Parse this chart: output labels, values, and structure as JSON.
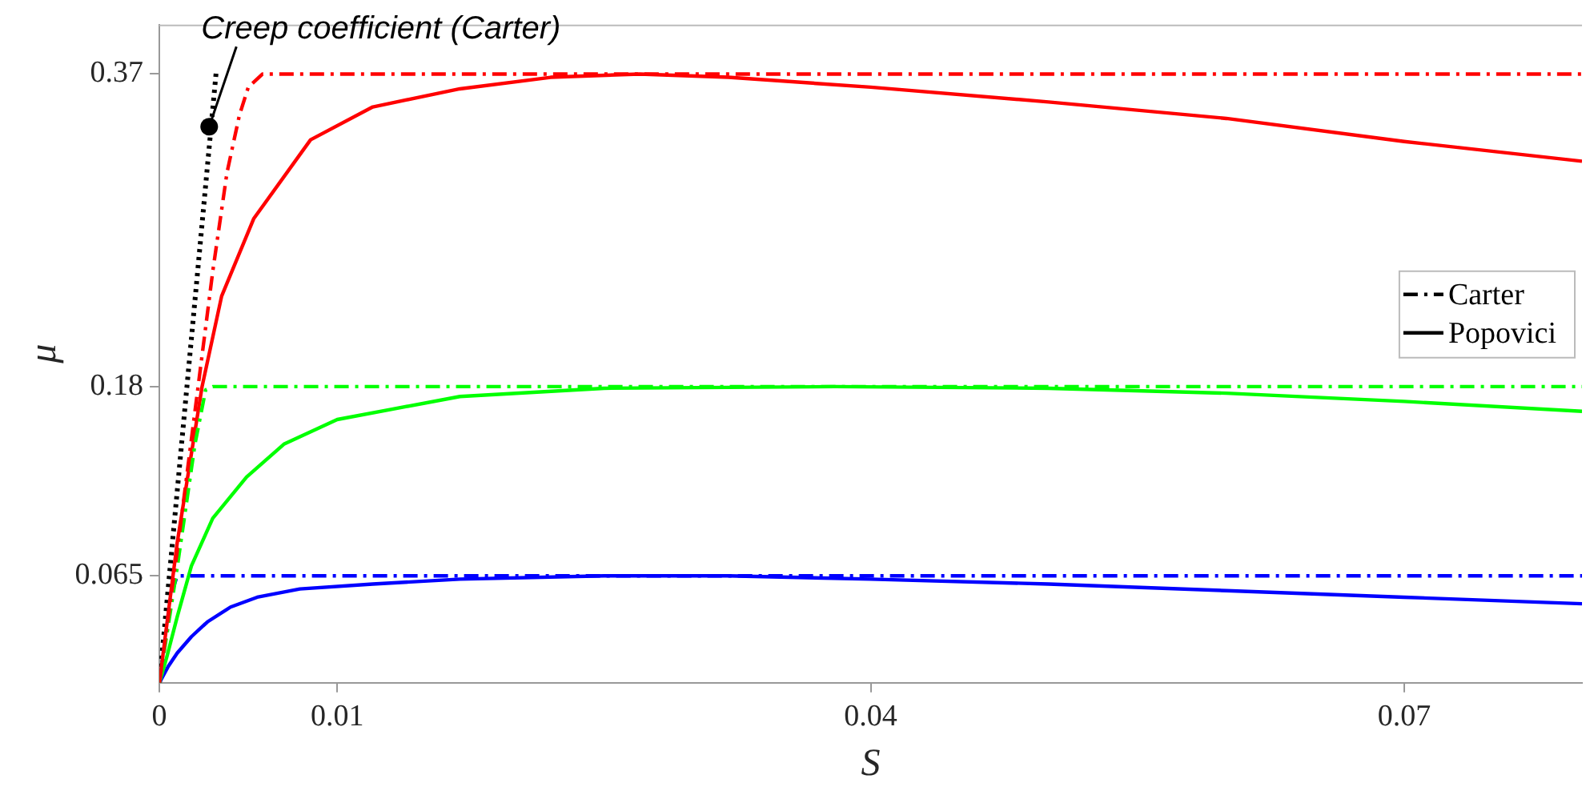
{
  "chart_data": {
    "type": "line",
    "xlabel": "S",
    "ylabel": "μ",
    "xlim": [
      0,
      0.08
    ],
    "ylim": [
      0,
      0.4
    ],
    "xticks": [
      0,
      0.01,
      0.04,
      0.07
    ],
    "yticks": [
      0.065,
      0.18,
      0.37
    ],
    "grid": false,
    "marker": "none",
    "annotations": [
      {
        "text": "Creep coefficient (Carter)",
        "x": 0.0028,
        "y": 0.338
      },
      "Carter",
      "Popovici"
    ],
    "series": [
      {
        "color": "#ff0000",
        "line_style": "dashed",
        "x": [
          0,
          0.001,
          0.002,
          0.003,
          0.0038,
          0.0045,
          0.005,
          0.0058,
          0.08
        ],
        "values": [
          0,
          0.08,
          0.165,
          0.25,
          0.31,
          0.345,
          0.362,
          0.37,
          0.37
        ]
      },
      {
        "color": "#00ff00",
        "line_style": "dashed",
        "x": [
          0,
          0.001,
          0.002,
          0.0026,
          0.003,
          0.08
        ],
        "values": [
          0,
          0.07,
          0.145,
          0.178,
          0.18,
          0.18
        ]
      },
      {
        "color": "#0000ff",
        "line_style": "dashed",
        "x": [
          0,
          0.0007,
          0.001,
          0.08
        ],
        "values": [
          0,
          0.055,
          0.065,
          0.065
        ]
      },
      {
        "color": "#ff0000",
        "line_style": "solid",
        "x": [
          0,
          0.001,
          0.0024,
          0.0035,
          0.0053,
          0.0085,
          0.012,
          0.0169,
          0.022,
          0.027,
          0.032,
          0.04,
          0.05,
          0.06,
          0.07,
          0.08
        ],
        "values": [
          0,
          0.085,
          0.18,
          0.235,
          0.282,
          0.33,
          0.35,
          0.361,
          0.368,
          0.37,
          0.368,
          0.362,
          0.353,
          0.343,
          0.329,
          0.317
        ]
      },
      {
        "color": "#00ff00",
        "line_style": "solid",
        "x": [
          0,
          0.0004,
          0.001,
          0.0018,
          0.003,
          0.0049,
          0.007,
          0.01,
          0.0169,
          0.025,
          0.038,
          0.05,
          0.06,
          0.07,
          0.08
        ],
        "values": [
          0,
          0.015,
          0.04,
          0.071,
          0.1,
          0.125,
          0.145,
          0.16,
          0.174,
          0.179,
          0.18,
          0.179,
          0.176,
          0.171,
          0.165
        ]
      },
      {
        "color": "#0000ff",
        "line_style": "solid",
        "x": [
          0,
          0.0005,
          0.001,
          0.0018,
          0.0027,
          0.004,
          0.0055,
          0.0079,
          0.012,
          0.0169,
          0.025,
          0.032,
          0.04,
          0.05,
          0.06,
          0.07,
          0.08
        ],
        "values": [
          0,
          0.01,
          0.018,
          0.028,
          0.037,
          0.046,
          0.052,
          0.057,
          0.06,
          0.063,
          0.065,
          0.065,
          0.063,
          0.06,
          0.056,
          0.052,
          0.048
        ]
      },
      {
        "color": "#000000",
        "line_style": "dotted",
        "x": [
          0,
          0.0032
        ],
        "values": [
          0,
          0.372
        ]
      }
    ]
  }
}
